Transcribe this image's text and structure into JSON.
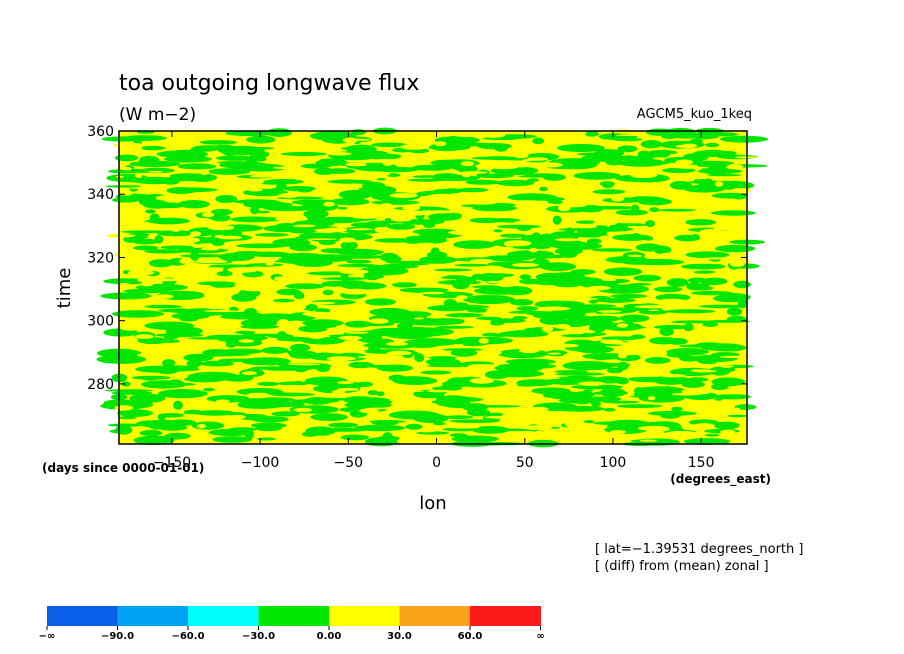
{
  "chart_data": {
    "type": "heatmap",
    "title": "toa outgoing longwave flux",
    "units": "(W m−2)",
    "model": "AGCM5_kuo_1keq",
    "xlabel": "lon",
    "ylabel": "time",
    "x_units": "(degrees_east)",
    "y_units": "(days since 0000-01-01)",
    "xlim": [
      -180,
      176
    ],
    "ylim": [
      261,
      360
    ],
    "x_ticks": [
      {
        "value": -150,
        "label": "−150"
      },
      {
        "value": -100,
        "label": "−100"
      },
      {
        "value": -50,
        "label": "−50"
      },
      {
        "value": 0,
        "label": "0"
      },
      {
        "value": 50,
        "label": "50"
      },
      {
        "value": 100,
        "label": "100"
      },
      {
        "value": 150,
        "label": "150"
      }
    ],
    "y_ticks": [
      {
        "value": 280,
        "label": "280"
      },
      {
        "value": 300,
        "label": "300"
      },
      {
        "value": 320,
        "label": "320"
      },
      {
        "value": 340,
        "label": "340"
      },
      {
        "value": 360,
        "label": "360"
      }
    ],
    "annotations": [
      "[ lat=−1.39531 degrees_north ]",
      "[ (diff) from (mean) zonal ]"
    ],
    "dominant_levels": [
      "-30.0 to 0.00",
      "0.00 to 30.0"
    ],
    "colorbar": {
      "colors": [
        "#0a5fe8",
        "#00a2f2",
        "#00ffff",
        "#00e600",
        "#ffff00",
        "#f9a31b",
        "#ff1a1a"
      ],
      "labels": [
        "−∞",
        "−90.0",
        "−60.0",
        "−30.0",
        "0.00",
        "30.0",
        "60.0",
        "∞"
      ]
    }
  }
}
